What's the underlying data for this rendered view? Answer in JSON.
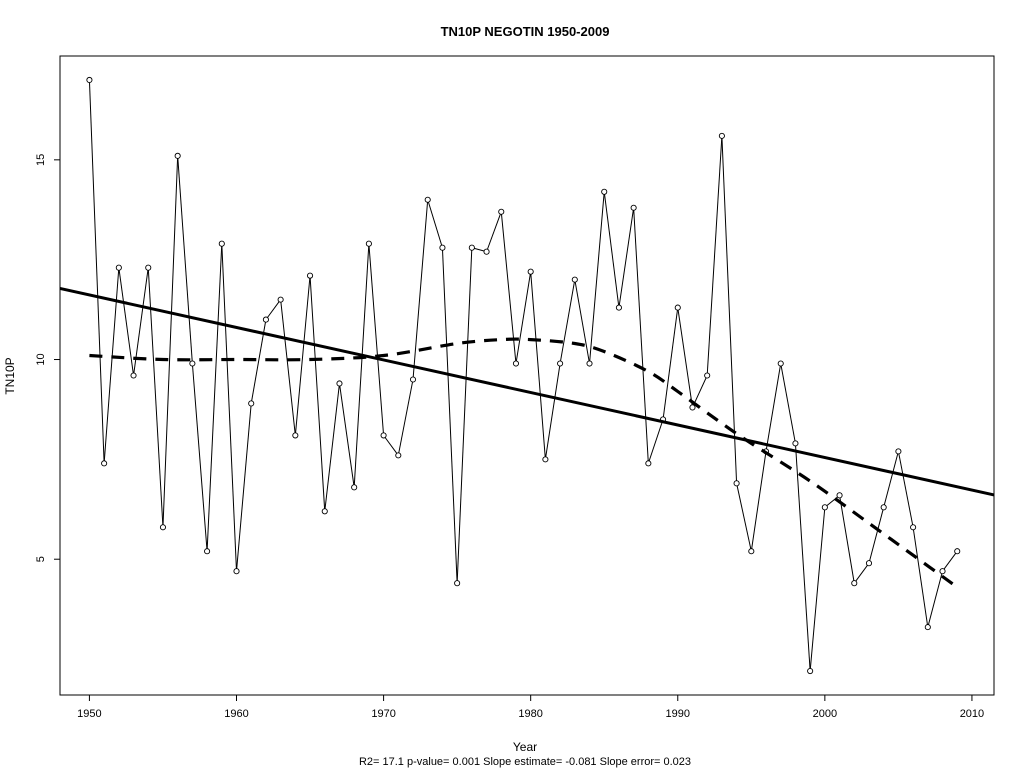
{
  "chart_data": {
    "type": "line",
    "title": "TN10P   NEGOTIN 1950-2009",
    "xlabel": "Year",
    "ylabel": "TN10P",
    "subtitle": "R2= 17.1  p-value= 0.001  Slope estimate= -0.081  Slope error= 0.023",
    "xlim": [
      1948,
      2011.5
    ],
    "ylim": [
      1.6,
      17.6
    ],
    "x_ticks": [
      1950,
      1960,
      1970,
      1980,
      1990,
      2000,
      2010
    ],
    "y_ticks": [
      5,
      10,
      15
    ],
    "grid": false,
    "series": [
      {
        "style": "thin line with open circle markers",
        "x": [
          1950,
          1951,
          1952,
          1953,
          1954,
          1955,
          1956,
          1957,
          1958,
          1959,
          1960,
          1961,
          1962,
          1963,
          1964,
          1965,
          1966,
          1967,
          1968,
          1969,
          1970,
          1971,
          1972,
          1973,
          1974,
          1975,
          1976,
          1977,
          1978,
          1979,
          1980,
          1981,
          1982,
          1983,
          1984,
          1985,
          1986,
          1987,
          1988,
          1989,
          1990,
          1991,
          1992,
          1993,
          1994,
          1995,
          1996,
          1997,
          1998,
          1999,
          2000,
          2001,
          2002,
          2003,
          2004,
          2005,
          2006,
          2007,
          2008,
          2009
        ],
        "values": [
          17.0,
          7.4,
          12.3,
          9.6,
          12.3,
          5.8,
          15.1,
          9.9,
          5.2,
          12.9,
          4.7,
          8.9,
          11.0,
          11.5,
          8.1,
          12.1,
          6.2,
          9.4,
          6.8,
          12.9,
          8.1,
          7.6,
          9.5,
          14.0,
          12.8,
          4.4,
          12.8,
          12.7,
          13.7,
          9.9,
          12.2,
          7.5,
          9.9,
          12.0,
          9.9,
          14.2,
          11.3,
          13.8,
          7.4,
          8.5,
          11.3,
          8.8,
          9.6,
          15.6,
          6.9,
          5.2,
          7.7,
          9.9,
          7.9,
          2.2,
          6.3,
          6.6,
          4.4,
          4.9,
          6.3,
          7.7,
          5.8,
          3.3,
          4.7,
          5.2
        ]
      },
      {
        "style": "solid thick linear trend",
        "x": [
          1948,
          2011.5
        ],
        "values": [
          11.78,
          6.61
        ]
      },
      {
        "style": "dashed thick smoothed curve",
        "x": [
          1950,
          1955,
          1960,
          1965,
          1970,
          1975,
          1978,
          1980,
          1983,
          1985,
          1988,
          1990,
          1993,
          1995,
          1998,
          2000,
          2003,
          2006,
          2009
        ],
        "values": [
          10.1,
          10.0,
          10.0,
          10.0,
          10.1,
          10.4,
          10.5,
          10.5,
          10.4,
          10.2,
          9.7,
          9.2,
          8.4,
          7.9,
          7.2,
          6.7,
          5.9,
          5.1,
          4.3
        ]
      }
    ]
  }
}
